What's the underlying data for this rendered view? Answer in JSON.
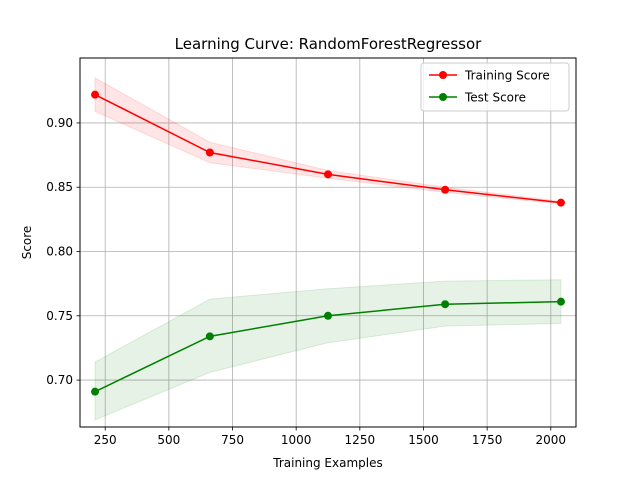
{
  "chart_data": {
    "type": "line",
    "title": "Learning Curve: RandomForestRegressor",
    "xlabel": "Training Examples",
    "ylabel": "Score",
    "xlim": [
      151,
      2099
    ],
    "ylim": [
      0.6635,
      0.9505
    ],
    "x": [
      210,
      661,
      1125,
      1585,
      2040
    ],
    "x_ticks": [
      250,
      500,
      750,
      1000,
      1250,
      1500,
      1750,
      2000
    ],
    "y_ticks": [
      0.7,
      0.75,
      0.8,
      0.85,
      0.9
    ],
    "x_tick_labels": [
      "250",
      "500",
      "750",
      "1000",
      "1250",
      "1500",
      "1750",
      "2000"
    ],
    "y_tick_labels": [
      "0.70",
      "0.75",
      "0.80",
      "0.85",
      "0.90"
    ],
    "grid": true,
    "legend_position": "top-right",
    "series": [
      {
        "name": "Training Score",
        "color": "#ff0000",
        "band_color": "#ff0000",
        "values": [
          0.922,
          0.877,
          0.86,
          0.848,
          0.838
        ],
        "band_upper": [
          0.935,
          0.885,
          0.863,
          0.85,
          0.839
        ],
        "band_lower": [
          0.909,
          0.869,
          0.857,
          0.846,
          0.837
        ]
      },
      {
        "name": "Test Score",
        "color": "#008000",
        "band_color": "#008000",
        "values": [
          0.691,
          0.734,
          0.75,
          0.759,
          0.761
        ],
        "band_upper": [
          0.714,
          0.763,
          0.771,
          0.777,
          0.778
        ],
        "band_lower": [
          0.669,
          0.706,
          0.729,
          0.742,
          0.744
        ]
      }
    ]
  }
}
